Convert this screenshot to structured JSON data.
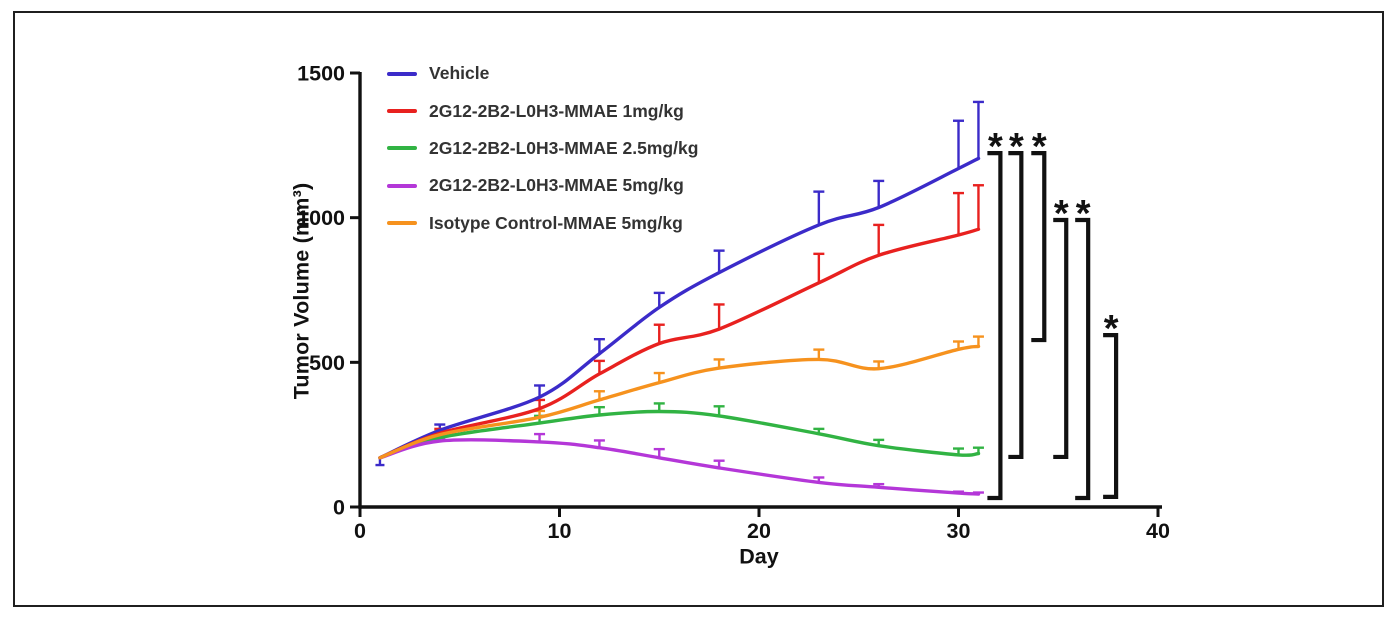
{
  "chart_data": {
    "type": "line",
    "title": "",
    "xlabel": "Day",
    "ylabel": "Tumor Volume (mm³)",
    "grid": false,
    "legend_position": "top-left-inside",
    "axis_color": "#111111",
    "axes": {
      "x": {
        "min": 0,
        "max": 40,
        "ticks": [
          0,
          10,
          20,
          30,
          40
        ]
      },
      "y": {
        "min": 0,
        "max": 1500,
        "ticks": [
          0,
          500,
          1000,
          1500
        ]
      }
    },
    "x_days": [
      1,
      4,
      9,
      12,
      15,
      18,
      23,
      26,
      30,
      31
    ],
    "error_bars": "upper-SEM-with-cap",
    "series": [
      {
        "name": "Vehicle",
        "color": "#3b2bc9",
        "values": [
          170,
          265,
          380,
          530,
          690,
          810,
          975,
          1035,
          1170,
          1205
        ],
        "errors": [
          0,
          20,
          40,
          50,
          50,
          76,
          115,
          92,
          165,
          195
        ],
        "first_point_down_error": 25
      },
      {
        "name": "2G12-2B2-L0H3-MMAE 1mg/kg",
        "color": "#e8211f",
        "values": [
          170,
          255,
          340,
          460,
          565,
          615,
          775,
          870,
          940,
          960
        ],
        "errors": [
          0,
          15,
          30,
          45,
          65,
          85,
          100,
          105,
          145,
          152
        ]
      },
      {
        "name": "2G12-2B2-L0H3-MMAE 2.5mg/kg",
        "color": "#31b343",
        "values": [
          170,
          240,
          290,
          318,
          330,
          315,
          253,
          212,
          180,
          185
        ],
        "errors": [
          0,
          12,
          25,
          27,
          28,
          33,
          17,
          20,
          22,
          20
        ]
      },
      {
        "name": "2G12-2B2-L0H3-MMAE 5mg/kg",
        "color": "#b437d8",
        "values": [
          170,
          228,
          225,
          205,
          170,
          135,
          85,
          68,
          48,
          45
        ],
        "errors": [
          0,
          10,
          27,
          25,
          30,
          25,
          17,
          11,
          5,
          5
        ]
      },
      {
        "name": "Isotype Control-MMAE 5mg/kg",
        "color": "#f6921e",
        "values": [
          170,
          250,
          310,
          370,
          430,
          480,
          510,
          478,
          545,
          555
        ],
        "errors": [
          0,
          12,
          22,
          30,
          33,
          30,
          34,
          25,
          27,
          34
        ]
      }
    ],
    "significance": [
      {
        "symbol": "*",
        "x_day": 32.1,
        "from_value": 1223,
        "to_value": 31
      },
      {
        "symbol": "*",
        "x_day": 33.15,
        "from_value": 1223,
        "to_value": 173
      },
      {
        "symbol": "*",
        "x_day": 34.3,
        "from_value": 1223,
        "to_value": 577
      },
      {
        "symbol": "*",
        "x_day": 35.4,
        "from_value": 992,
        "to_value": 173
      },
      {
        "symbol": "*",
        "x_day": 36.5,
        "from_value": 992,
        "to_value": 31
      },
      {
        "symbol": "*",
        "x_day": 37.9,
        "from_value": 594,
        "to_value": 35
      }
    ]
  }
}
